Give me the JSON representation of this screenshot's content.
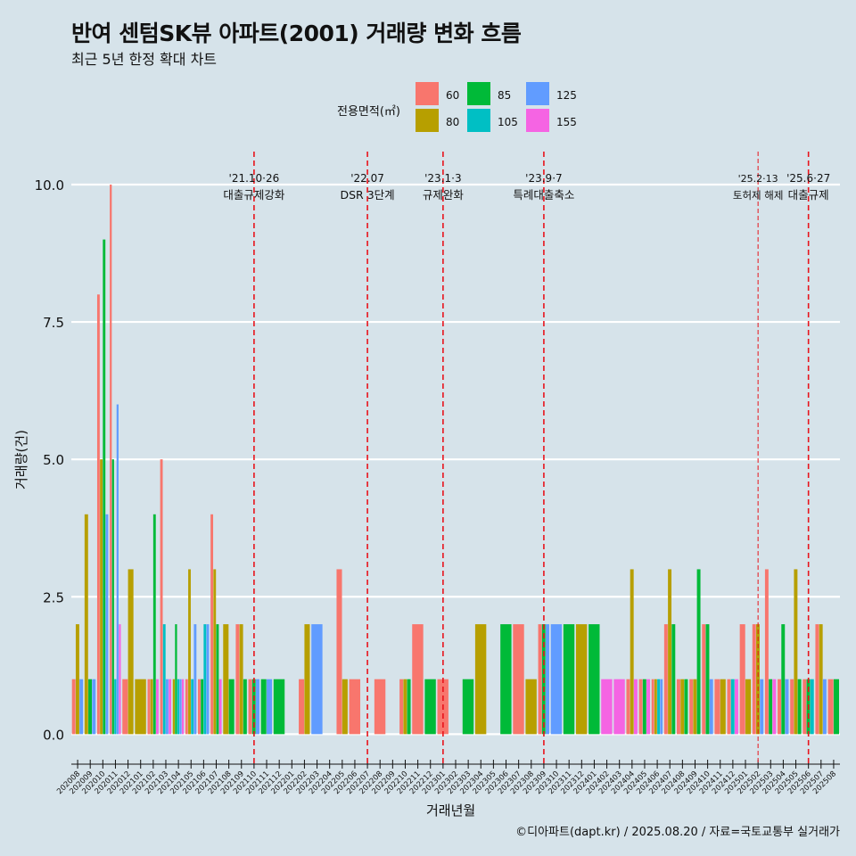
{
  "title": "반여 센텀SK뷰 아파트(2001) 거래량 변화 흐름",
  "subtitle": "최근 5년 한정 확대 차트",
  "caption": "©디아파트(dapt.kr) / 2025.08.20 / 자료=국토교통부 실거래가",
  "colors": {
    "60": "#f8766d",
    "80": "#b79f00",
    "85": "#00ba38",
    "105": "#00bfc4",
    "125": "#619cff",
    "155": "#f564e3",
    "event": "#e8141c",
    "background": "#d6e3ea"
  },
  "legend": {
    "title": "전용면적(㎡)",
    "items": [
      {
        "key": "60",
        "label": "60"
      },
      {
        "key": "80",
        "label": "80"
      },
      {
        "key": "85",
        "label": "85"
      },
      {
        "key": "105",
        "label": "105"
      },
      {
        "key": "125",
        "label": "125"
      },
      {
        "key": "155",
        "label": "155"
      }
    ]
  },
  "chart_data": {
    "type": "bar",
    "title": "반여 센텀SK뷰 아파트(2001) 거래량 변화 흐름",
    "xlabel": "거래년월",
    "ylabel": "거래량(건)",
    "ylim": [
      -0.4,
      10.6
    ],
    "yticks": [
      0.0,
      2.5,
      5.0,
      7.5,
      10.0
    ],
    "ytick_labels": [
      "0.0",
      "2.5",
      "5.0",
      "7.5",
      "10.0"
    ],
    "grid": true,
    "categories": [
      "202008",
      "202009",
      "202010",
      "202011",
      "202012",
      "202101",
      "202102",
      "202103",
      "202104",
      "202105",
      "202106",
      "202107",
      "202108",
      "202109",
      "202110",
      "202111",
      "202112",
      "202201",
      "202202",
      "202203",
      "202204",
      "202205",
      "202206",
      "202207",
      "202208",
      "202209",
      "202210",
      "202211",
      "202212",
      "202301",
      "202302",
      "202303",
      "202304",
      "202305",
      "202306",
      "202307",
      "202308",
      "202309",
      "202310",
      "202311",
      "202312",
      "202401",
      "202402",
      "202403",
      "202404",
      "202405",
      "202406",
      "202407",
      "202408",
      "202409",
      "202410",
      "202411",
      "202412",
      "202501",
      "202502",
      "202503",
      "202504",
      "202505",
      "202506",
      "202507",
      "202508"
    ],
    "series": [
      {
        "name": "60",
        "color": "#f8766d",
        "points": [
          [
            "202008",
            1
          ],
          [
            "202010",
            8
          ],
          [
            "202011",
            10
          ],
          [
            "202012",
            1
          ],
          [
            "202102",
            1
          ],
          [
            "202103",
            5
          ],
          [
            "202105",
            1
          ],
          [
            "202106",
            1
          ],
          [
            "202107",
            4
          ],
          [
            "202109",
            2
          ],
          [
            "202110",
            1
          ],
          [
            "202202",
            1
          ],
          [
            "202205",
            3
          ],
          [
            "202206",
            1
          ],
          [
            "202208",
            1
          ],
          [
            "202210",
            1
          ],
          [
            "202211",
            2
          ],
          [
            "202301",
            1
          ],
          [
            "202307",
            2
          ],
          [
            "202309",
            2
          ],
          [
            "202404",
            1
          ],
          [
            "202405",
            1
          ],
          [
            "202406",
            1
          ],
          [
            "202407",
            2
          ],
          [
            "202408",
            1
          ],
          [
            "202409",
            1
          ],
          [
            "202410",
            2
          ],
          [
            "202411",
            1
          ],
          [
            "202412",
            1
          ],
          [
            "202501",
            2
          ],
          [
            "202502",
            2
          ],
          [
            "202503",
            3
          ],
          [
            "202504",
            1
          ],
          [
            "202505",
            1
          ],
          [
            "202506",
            1
          ],
          [
            "202507",
            2
          ],
          [
            "202508",
            1
          ]
        ]
      },
      {
        "name": "80",
        "color": "#b79f00",
        "points": [
          [
            "202008",
            2
          ],
          [
            "202009",
            4
          ],
          [
            "202010",
            5
          ],
          [
            "202012",
            3
          ],
          [
            "202101",
            1
          ],
          [
            "202102",
            1
          ],
          [
            "202104",
            1
          ],
          [
            "202105",
            3
          ],
          [
            "202107",
            3
          ],
          [
            "202108",
            2
          ],
          [
            "202109",
            2
          ],
          [
            "202202",
            2
          ],
          [
            "202205",
            1
          ],
          [
            "202210",
            1
          ],
          [
            "202304",
            2
          ],
          [
            "202308",
            1
          ],
          [
            "202312",
            2
          ],
          [
            "202404",
            3
          ],
          [
            "202406",
            1
          ],
          [
            "202407",
            3
          ],
          [
            "202408",
            1
          ],
          [
            "202409",
            1
          ],
          [
            "202411",
            1
          ],
          [
            "202501",
            1
          ],
          [
            "202502",
            2
          ],
          [
            "202505",
            3
          ],
          [
            "202507",
            2
          ]
        ]
      },
      {
        "name": "85",
        "color": "#00ba38",
        "points": [
          [
            "202009",
            1
          ],
          [
            "202010",
            9
          ],
          [
            "202011",
            5
          ],
          [
            "202102",
            4
          ],
          [
            "202104",
            2
          ],
          [
            "202106",
            1
          ],
          [
            "202107",
            2
          ],
          [
            "202108",
            1
          ],
          [
            "202109",
            1
          ],
          [
            "202110",
            1
          ],
          [
            "202111",
            1
          ],
          [
            "202112",
            1
          ],
          [
            "202210",
            1
          ],
          [
            "202212",
            1
          ],
          [
            "202303",
            1
          ],
          [
            "202306",
            2
          ],
          [
            "202309",
            2
          ],
          [
            "202311",
            2
          ],
          [
            "202401",
            2
          ],
          [
            "202405",
            1
          ],
          [
            "202407",
            2
          ],
          [
            "202408",
            1
          ],
          [
            "202409",
            3
          ],
          [
            "202410",
            2
          ],
          [
            "202503",
            1
          ],
          [
            "202504",
            2
          ],
          [
            "202505",
            1
          ],
          [
            "202506",
            1
          ],
          [
            "202508",
            1
          ]
        ]
      },
      {
        "name": "105",
        "color": "#00bfc4",
        "points": [
          [
            "202011",
            1
          ],
          [
            "202103",
            2
          ],
          [
            "202104",
            1
          ],
          [
            "202105",
            1
          ],
          [
            "202106",
            2
          ],
          [
            "202406",
            1
          ],
          [
            "202412",
            1
          ],
          [
            "202506",
            1
          ]
        ]
      },
      {
        "name": "125",
        "color": "#619cff",
        "points": [
          [
            "202008",
            1
          ],
          [
            "202009",
            1
          ],
          [
            "202010",
            4
          ],
          [
            "202011",
            6
          ],
          [
            "202103",
            1
          ],
          [
            "202104",
            1
          ],
          [
            "202105",
            2
          ],
          [
            "202106",
            2
          ],
          [
            "202110",
            1
          ],
          [
            "202111",
            1
          ],
          [
            "202203",
            2
          ],
          [
            "202309",
            2
          ],
          [
            "202310",
            2
          ],
          [
            "202406",
            1
          ],
          [
            "202410",
            1
          ],
          [
            "202502",
            1
          ],
          [
            "202504",
            1
          ],
          [
            "202507",
            1
          ]
        ]
      },
      {
        "name": "155",
        "color": "#f564e3",
        "points": [
          [
            "202011",
            2
          ],
          [
            "202102",
            1
          ],
          [
            "202103",
            1
          ],
          [
            "202104",
            1
          ],
          [
            "202107",
            1
          ],
          [
            "202402",
            1
          ],
          [
            "202403",
            1
          ],
          [
            "202404",
            1
          ],
          [
            "202405",
            1
          ],
          [
            "202412",
            1
          ],
          [
            "202503",
            1
          ]
        ]
      }
    ],
    "annotations": [
      {
        "date": "'21.10·26",
        "label": "대출규제강화",
        "at": "202110",
        "style": "dashed"
      },
      {
        "date": "'22.07",
        "label": "DSR 3단계",
        "at": "202207",
        "style": "dashed"
      },
      {
        "date": "'23.1·3",
        "label": "규제완화",
        "at": "202301",
        "style": "dashed"
      },
      {
        "date": "'23.9·7",
        "label": "특례대출축소",
        "at": "202309",
        "style": "dashed"
      },
      {
        "date": "'25.2·13",
        "label": "토허제 해제",
        "at": "202502",
        "style": "thin"
      },
      {
        "date": "'25.6·27",
        "label": "대출규제",
        "at": "202506",
        "style": "dashed"
      }
    ]
  }
}
